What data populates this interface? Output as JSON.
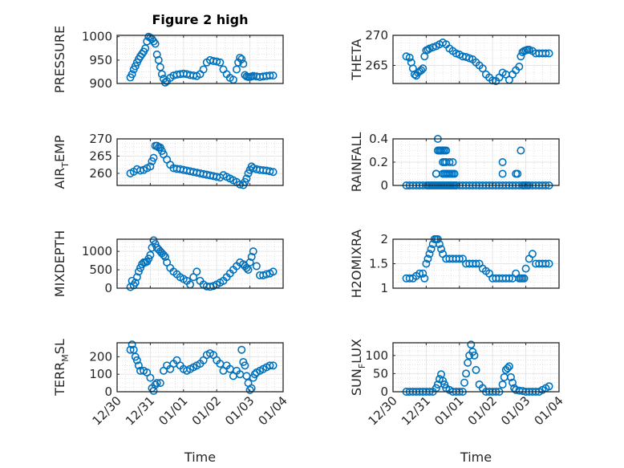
{
  "chart_data": [
    {
      "type": "scatter",
      "title": "Figure 2 high",
      "ylabel": "PRESSURE",
      "ylabel_sub": "",
      "xlabel": "",
      "ylim": [
        900,
        1003
      ],
      "yticks": [
        900,
        950,
        1000
      ],
      "ytick_labels": [
        "900",
        "950",
        "1000"
      ],
      "x": [
        0.4,
        0.45,
        0.5,
        0.55,
        0.6,
        0.65,
        0.7,
        0.75,
        0.8,
        0.85,
        0.9,
        0.95,
        1.0,
        1.05,
        1.1,
        1.15,
        1.2,
        1.25,
        1.3,
        1.35,
        1.4,
        1.45,
        1.5,
        1.6,
        1.7,
        1.8,
        1.9,
        2.0,
        2.1,
        2.2,
        2.3,
        2.4,
        2.5,
        2.6,
        2.7,
        2.8,
        2.9,
        3.0,
        3.1,
        3.2,
        3.3,
        3.4,
        3.5,
        3.6,
        3.65,
        3.7,
        3.75,
        3.8,
        3.85,
        3.9,
        3.95,
        4.0,
        4.05,
        4.1,
        4.2,
        4.3,
        4.4,
        4.5,
        4.6,
        4.7
      ],
      "y": [
        913,
        920,
        930,
        937,
        945,
        952,
        958,
        963,
        968,
        975,
        990,
        1000,
        998,
        995,
        990,
        985,
        962,
        950,
        935,
        920,
        910,
        902,
        905,
        912,
        917,
        919,
        920,
        921,
        920,
        918,
        917,
        916,
        920,
        930,
        945,
        950,
        948,
        947,
        945,
        930,
        920,
        912,
        908,
        930,
        945,
        955,
        952,
        942,
        918,
        915,
        914,
        914,
        915,
        916,
        915,
        914,
        915,
        916,
        917,
        917
      ],
      "series_name": "PRESSURE"
    },
    {
      "type": "scatter",
      "ylabel": "THETA",
      "ylabel_sub": "",
      "ylim": [
        262,
        270
      ],
      "yticks": [
        265,
        270
      ],
      "ytick_labels": [
        "265",
        "270"
      ],
      "x": [
        0.4,
        0.5,
        0.55,
        0.6,
        0.65,
        0.7,
        0.75,
        0.8,
        0.85,
        0.9,
        0.95,
        1.0,
        1.05,
        1.1,
        1.2,
        1.3,
        1.4,
        1.5,
        1.6,
        1.7,
        1.8,
        1.9,
        2.0,
        2.1,
        2.2,
        2.3,
        2.4,
        2.5,
        2.6,
        2.7,
        2.8,
        2.9,
        3.0,
        3.1,
        3.2,
        3.3,
        3.4,
        3.5,
        3.6,
        3.7,
        3.8,
        3.85,
        3.9,
        3.95,
        4.0,
        4.05,
        4.1,
        4.2,
        4.3,
        4.4,
        4.5,
        4.6,
        4.7
      ],
      "y": [
        266.5,
        266.3,
        265.5,
        264.5,
        263.5,
        263.3,
        263.8,
        264.0,
        264.2,
        264.5,
        266.5,
        267.5,
        267.6,
        267.8,
        268,
        268.2,
        268.5,
        268.8,
        268.5,
        267.8,
        267.4,
        267.0,
        266.8,
        266.5,
        266.4,
        266.2,
        266.0,
        265.5,
        265,
        264.5,
        263.5,
        263,
        262.5,
        262.4,
        263,
        263.8,
        263.5,
        262.6,
        263.5,
        264.2,
        264.8,
        266.5,
        267.2,
        267.4,
        267.5,
        267.6,
        267.6,
        267.4,
        267.0,
        267.0,
        267.0,
        267.0,
        267.0
      ],
      "series_name": "THETA"
    },
    {
      "type": "scatter",
      "ylabel": "AIR",
      "ylabel_sub": "T",
      "ylabel_suffix": "EMP",
      "ylim": [
        256.5,
        270
      ],
      "yticks": [
        260,
        265,
        270
      ],
      "ytick_labels": [
        "260",
        "265",
        "270"
      ],
      "x": [
        0.4,
        0.5,
        0.6,
        0.7,
        0.8,
        0.9,
        1.0,
        1.05,
        1.1,
        1.15,
        1.2,
        1.25,
        1.3,
        1.35,
        1.4,
        1.5,
        1.6,
        1.7,
        1.8,
        1.9,
        2.0,
        2.1,
        2.2,
        2.3,
        2.4,
        2.5,
        2.6,
        2.7,
        2.8,
        2.9,
        3.0,
        3.1,
        3.2,
        3.3,
        3.4,
        3.5,
        3.6,
        3.7,
        3.8,
        3.85,
        3.9,
        3.95,
        4.0,
        4.05,
        4.1,
        4.2,
        4.3,
        4.4,
        4.5,
        4.6,
        4.7
      ],
      "y": [
        260,
        260.5,
        261.2,
        260.8,
        261,
        261.5,
        262,
        263.5,
        264.5,
        268,
        268,
        267.5,
        267.5,
        266.5,
        265.5,
        264,
        262.5,
        261.5,
        261.3,
        261.2,
        261.0,
        260.8,
        260.6,
        260.4,
        260.2,
        260.0,
        259.8,
        259.6,
        259.4,
        259.2,
        259.0,
        258.8,
        259.5,
        259.0,
        258.5,
        258.0,
        257.5,
        256.8,
        256.6,
        257.5,
        258.5,
        260,
        261,
        262,
        261.5,
        261.2,
        261.0,
        260.9,
        260.8,
        260.6,
        260.4
      ],
      "series_name": "AIR_TEMP"
    },
    {
      "type": "scatter",
      "ylabel": "RAINFALL",
      "ylabel_sub": "",
      "ylim": [
        0,
        0.4
      ],
      "yticks": [
        0,
        0.2,
        0.4
      ],
      "ytick_labels": [
        "0",
        "0.2",
        "0.4"
      ],
      "x": [
        0.4,
        0.5,
        0.6,
        0.7,
        0.8,
        0.9,
        1.0,
        1.05,
        1.1,
        1.15,
        1.2,
        1.25,
        1.3,
        1.35,
        1.4,
        1.45,
        1.5,
        1.55,
        1.6,
        1.65,
        1.7,
        1.75,
        1.8,
        1.85,
        1.9,
        1.3,
        1.35,
        1.4,
        1.45,
        1.5,
        1.55,
        1.6,
        1.65,
        1.55,
        1.6,
        1.7,
        1.8,
        1.5,
        1.6,
        1.7,
        1.75,
        1.8,
        1.85,
        1.4,
        1.3,
        1.35,
        1.45,
        1.5,
        1.55,
        1.6,
        1.7,
        1.8,
        1.9,
        2.0,
        2.1,
        2.2,
        2.3,
        2.4,
        2.5,
        2.6,
        2.7,
        2.8,
        2.9,
        3.0,
        3.1,
        3.2,
        3.3,
        3.4,
        3.5,
        3.6,
        3.7,
        3.8,
        3.9,
        4.0,
        4.1,
        4.2,
        4.3,
        4.4,
        4.5,
        4.6,
        4.7,
        3.3,
        3.3,
        3.75,
        3.7,
        3.85,
        3.9,
        3.95,
        4.05
      ],
      "y": [
        0,
        0,
        0,
        0,
        0,
        0,
        0,
        0,
        0,
        0,
        0,
        0,
        0,
        0,
        0,
        0,
        0,
        0,
        0,
        0,
        0,
        0,
        0,
        0,
        0,
        0.1,
        0.3,
        0.3,
        0.3,
        0.3,
        0.3,
        0.3,
        0.1,
        0.2,
        0.2,
        0.2,
        0.2,
        0.1,
        0.1,
        0.1,
        0.1,
        0.1,
        0.1,
        0.3,
        0.1,
        0.4,
        0.3,
        0.2,
        0.1,
        0.1,
        0,
        0,
        0,
        0,
        0,
        0,
        0,
        0,
        0,
        0,
        0,
        0,
        0,
        0,
        0,
        0,
        0,
        0,
        0,
        0,
        0,
        0,
        0,
        0,
        0,
        0,
        0,
        0,
        0,
        0,
        0,
        0.2,
        0.1,
        0.1,
        0.1,
        0.3,
        0,
        0,
        0
      ],
      "series_name": "RAINFALL"
    },
    {
      "type": "scatter",
      "ylabel": "MIXDEPTH",
      "ylabel_sub": "",
      "ylim": [
        0,
        1330
      ],
      "yticks": [
        0,
        500,
        1000
      ],
      "ytick_labels": [
        "0",
        "500",
        "1000"
      ],
      "x": [
        0.4,
        0.45,
        0.5,
        0.55,
        0.6,
        0.65,
        0.7,
        0.75,
        0.8,
        0.85,
        0.9,
        0.95,
        1.0,
        1.05,
        1.1,
        1.15,
        1.2,
        1.25,
        1.3,
        1.35,
        1.4,
        1.45,
        1.5,
        1.6,
        1.7,
        1.8,
        1.9,
        2.0,
        2.1,
        2.2,
        2.3,
        2.4,
        2.5,
        2.6,
        2.7,
        2.8,
        2.9,
        3.0,
        3.1,
        3.2,
        3.3,
        3.4,
        3.5,
        3.6,
        3.7,
        3.8,
        3.85,
        3.9,
        3.95,
        4.0,
        4.05,
        4.1,
        4.2,
        4.3,
        4.4,
        4.5,
        4.6,
        4.7
      ],
      "y": [
        30,
        200,
        80,
        150,
        300,
        450,
        550,
        650,
        700,
        700,
        720,
        800,
        900,
        1100,
        1300,
        1200,
        1100,
        1050,
        1000,
        950,
        900,
        850,
        700,
        550,
        450,
        380,
        300,
        250,
        200,
        100,
        300,
        450,
        200,
        100,
        50,
        40,
        60,
        100,
        150,
        200,
        300,
        400,
        500,
        600,
        700,
        650,
        600,
        550,
        500,
        700,
        850,
        1000,
        600,
        350,
        350,
        380,
        400,
        450
      ],
      "series_name": "MIXDEPTH"
    },
    {
      "type": "scatter",
      "ylabel": "H2OMIXRA",
      "ylabel_sub": "",
      "ylim": [
        1,
        2
      ],
      "yticks": [
        1,
        1.5,
        2
      ],
      "ytick_labels": [
        "1",
        "1.5",
        "2"
      ],
      "x": [
        0.4,
        0.5,
        0.6,
        0.7,
        0.8,
        0.9,
        0.95,
        1.0,
        1.05,
        1.1,
        1.15,
        1.2,
        1.25,
        1.3,
        1.35,
        1.4,
        1.45,
        1.5,
        1.6,
        1.7,
        1.8,
        1.9,
        2.0,
        2.1,
        2.2,
        2.3,
        2.4,
        2.5,
        2.6,
        2.7,
        2.8,
        2.9,
        3.0,
        3.1,
        3.2,
        3.3,
        3.4,
        3.5,
        3.6,
        3.7,
        3.8,
        3.85,
        3.9,
        3.95,
        4.0,
        4.1,
        4.2,
        4.3,
        4.4,
        4.5,
        4.6,
        4.7
      ],
      "y": [
        1.2,
        1.2,
        1.2,
        1.25,
        1.3,
        1.3,
        1.2,
        1.5,
        1.6,
        1.7,
        1.8,
        1.9,
        2.0,
        2.0,
        2.0,
        1.9,
        1.8,
        1.7,
        1.6,
        1.6,
        1.6,
        1.6,
        1.6,
        1.6,
        1.5,
        1.5,
        1.5,
        1.5,
        1.5,
        1.4,
        1.35,
        1.3,
        1.2,
        1.2,
        1.2,
        1.2,
        1.2,
        1.2,
        1.2,
        1.3,
        1.2,
        1.2,
        1.2,
        1.2,
        1.4,
        1.6,
        1.7,
        1.5,
        1.5,
        1.5,
        1.5,
        1.5
      ],
      "series_name": "H2OMIXRA"
    },
    {
      "type": "scatter",
      "ylabel": "TERR",
      "ylabel_sub": "M",
      "ylabel_suffix": "SL",
      "ylim": [
        0,
        280
      ],
      "yticks": [
        0,
        100,
        200
      ],
      "ytick_labels": [
        "0",
        "100",
        "200"
      ],
      "x": [
        0.4,
        0.45,
        0.5,
        0.55,
        0.6,
        0.65,
        0.7,
        0.8,
        0.9,
        1.0,
        1.05,
        1.1,
        1.15,
        1.2,
        1.3,
        1.4,
        1.5,
        1.6,
        1.7,
        1.8,
        1.9,
        2.0,
        2.1,
        2.2,
        2.3,
        2.4,
        2.5,
        2.6,
        2.7,
        2.8,
        2.9,
        3.0,
        3.1,
        3.2,
        3.3,
        3.4,
        3.5,
        3.6,
        3.7,
        3.75,
        3.8,
        3.85,
        3.9,
        3.95,
        4.0,
        4.05,
        4.1,
        4.15,
        4.2,
        4.3,
        4.4,
        4.5,
        4.6,
        4.7
      ],
      "y": [
        240,
        270,
        240,
        200,
        180,
        150,
        120,
        120,
        110,
        80,
        20,
        5,
        40,
        50,
        50,
        120,
        150,
        130,
        160,
        180,
        150,
        130,
        120,
        130,
        140,
        150,
        160,
        180,
        210,
        220,
        210,
        180,
        160,
        120,
        150,
        130,
        90,
        120,
        100,
        240,
        170,
        150,
        90,
        50,
        10,
        20,
        80,
        100,
        110,
        120,
        130,
        140,
        150,
        150
      ],
      "series_name": "TERR_MSL"
    },
    {
      "type": "scatter",
      "ylabel": "SUN",
      "ylabel_sub": "F",
      "ylabel_suffix": "LUX",
      "ylim": [
        0,
        135
      ],
      "yticks": [
        0,
        50,
        100
      ],
      "ytick_labels": [
        "0",
        "50",
        "100"
      ],
      "x": [
        0.4,
        0.5,
        0.6,
        0.7,
        0.8,
        0.9,
        1.0,
        1.1,
        1.2,
        1.3,
        1.35,
        1.4,
        1.45,
        1.5,
        1.55,
        1.6,
        1.7,
        1.8,
        1.9,
        2.0,
        2.1,
        2.15,
        2.2,
        2.25,
        2.3,
        2.35,
        2.4,
        2.45,
        2.5,
        2.6,
        2.7,
        2.8,
        2.9,
        3.0,
        3.1,
        3.2,
        3.3,
        3.35,
        3.4,
        3.45,
        3.5,
        3.55,
        3.6,
        3.65,
        3.7,
        3.8,
        3.9,
        4.0,
        4.1,
        4.2,
        4.3,
        4.4,
        4.5,
        4.6,
        4.7
      ],
      "y": [
        0,
        0,
        0,
        0,
        0,
        0,
        0,
        0,
        0,
        10,
        20,
        35,
        48,
        30,
        20,
        10,
        5,
        0,
        0,
        0,
        0,
        25,
        50,
        80,
        100,
        130,
        110,
        100,
        60,
        20,
        10,
        0,
        0,
        0,
        0,
        0,
        20,
        40,
        60,
        65,
        70,
        40,
        25,
        10,
        5,
        3,
        2,
        0,
        0,
        0,
        0,
        0,
        5,
        10,
        15
      ],
      "series_name": "SUN_FLUX"
    }
  ],
  "xaxis": {
    "ticks": [
      0,
      1,
      2,
      3,
      4,
      5
    ],
    "tick_labels": [
      "12/30",
      "12/31",
      "01/01",
      "01/02",
      "01/03",
      "01/04"
    ],
    "xlim": [
      0,
      5
    ],
    "xlabel": "Time"
  },
  "colors": {
    "marker": "#0072BD",
    "axis": "#262626",
    "grid": "#e6e6e6"
  }
}
